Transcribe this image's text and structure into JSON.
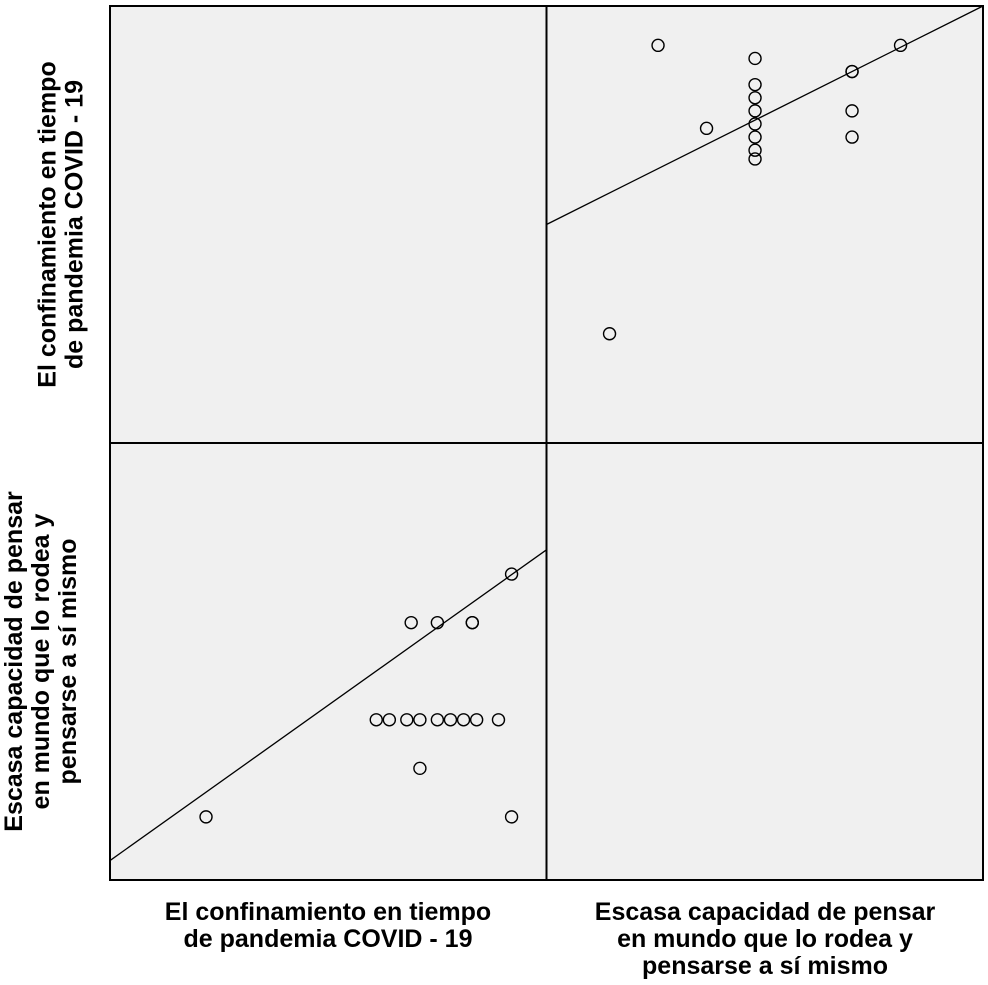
{
  "chart_data": {
    "type": "scatter",
    "variables": [
      {
        "id": "confinamiento",
        "label_lines": [
          "El confinamiento en tiempo",
          "de pandemia COVID - 19"
        ]
      },
      {
        "id": "capacidad",
        "label_lines": [
          "Escasa capacidad de pensar",
          "en mundo que lo rodea y",
          "pensarse a sí mismo"
        ]
      }
    ],
    "grid": false,
    "legend": "none",
    "background_color": "#f0f0f0",
    "marker_color": "#000000",
    "line_color": "#000000",
    "panels": [
      {
        "row": 0,
        "col": 1,
        "x_variable": "Escasa capacidad de pensar en mundo que lo rodea y pensarse a sí mismo",
        "y_variable": "El confinamiento en tiempo de pandemia COVID - 19",
        "xlim": [
          0.5,
          5.0
        ],
        "ylim": [
          0.4,
          5.4
        ],
        "fit_line": [
          [
            0.5,
            2.9
          ],
          [
            5.0,
            5.4
          ]
        ],
        "points": [
          [
            1.15,
            1.65
          ],
          [
            1.65,
            4.95
          ],
          [
            2.15,
            4.0
          ],
          [
            2.65,
            4.8
          ],
          [
            2.65,
            4.5
          ],
          [
            2.65,
            4.35
          ],
          [
            2.65,
            4.2
          ],
          [
            2.65,
            4.05
          ],
          [
            2.65,
            3.9
          ],
          [
            2.65,
            3.75
          ],
          [
            2.65,
            3.65
          ],
          [
            3.65,
            4.65
          ],
          [
            3.65,
            4.65
          ],
          [
            3.65,
            4.2
          ],
          [
            3.65,
            3.9
          ],
          [
            4.15,
            4.95
          ]
        ]
      },
      {
        "row": 1,
        "col": 0,
        "x_variable": "El confinamiento en tiempo de pandemia COVID - 19",
        "y_variable": "Escasa capacidad de pensar en mundo que lo rodea y pensarse a sí mismo",
        "xlim": [
          0.4,
          5.4
        ],
        "ylim": [
          0.5,
          5.0
        ],
        "fit_line": [
          [
            0.4,
            0.7
          ],
          [
            5.4,
            3.9
          ]
        ],
        "points": [
          [
            1.5,
            1.15
          ],
          [
            3.45,
            2.15
          ],
          [
            3.6,
            2.15
          ],
          [
            3.8,
            2.15
          ],
          [
            3.95,
            2.15
          ],
          [
            4.15,
            2.15
          ],
          [
            4.3,
            2.15
          ],
          [
            4.45,
            2.15
          ],
          [
            4.6,
            2.15
          ],
          [
            4.85,
            2.15
          ],
          [
            3.85,
            3.15
          ],
          [
            4.15,
            3.15
          ],
          [
            4.55,
            3.15
          ],
          [
            4.55,
            3.15
          ],
          [
            3.95,
            1.65
          ],
          [
            5.0,
            1.15
          ],
          [
            5.0,
            3.65
          ]
        ]
      }
    ]
  }
}
